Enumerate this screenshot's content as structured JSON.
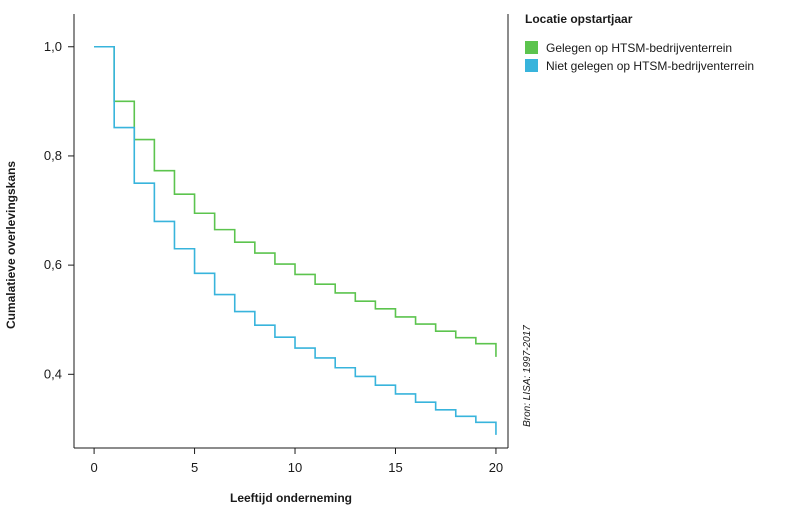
{
  "chart_data": {
    "type": "line",
    "step": true,
    "xlabel": "Leeftijd onderneming",
    "ylabel": "Cumalatieve overlevingskans",
    "xticks": [
      0,
      5,
      10,
      15,
      20
    ],
    "xtick_labels": [
      "0",
      "5",
      "10",
      "15",
      "20"
    ],
    "yticks": [
      0.4,
      0.6,
      0.8,
      1.0
    ],
    "ytick_labels": [
      "0,4",
      "0,6",
      "0,8",
      "1,0"
    ],
    "xlim": [
      -1,
      20.6
    ],
    "ylim": [
      0.265,
      1.06
    ],
    "grid": false,
    "legend": {
      "title": "Locatie opstartjaar",
      "placement": "top-right, outside plot"
    },
    "source": "Bron: LISA: 1997-2017",
    "series": [
      {
        "name": "Gelegen op HTSM-bedrijventerrein",
        "color": "#5cc44e",
        "x": [
          0,
          1,
          2,
          3,
          4,
          5,
          6,
          7,
          8,
          9,
          10,
          11,
          12,
          13,
          14,
          15,
          16,
          17,
          18,
          19,
          20
        ],
        "y": [
          1.0,
          0.9,
          0.83,
          0.773,
          0.73,
          0.695,
          0.665,
          0.642,
          0.622,
          0.602,
          0.583,
          0.565,
          0.549,
          0.534,
          0.52,
          0.505,
          0.492,
          0.479,
          0.467,
          0.456,
          0.443
        ]
      },
      {
        "name": "Niet gelegen op HTSM-bedrijventerrein",
        "color": "#38b4dc",
        "x": [
          0,
          1,
          2,
          3,
          4,
          5,
          6,
          7,
          8,
          9,
          10,
          11,
          12,
          13,
          14,
          15,
          16,
          17,
          18,
          19,
          20
        ],
        "y": [
          1.0,
          0.852,
          0.75,
          0.68,
          0.63,
          0.585,
          0.546,
          0.515,
          0.49,
          0.468,
          0.448,
          0.43,
          0.412,
          0.396,
          0.38,
          0.364,
          0.349,
          0.335,
          0.323,
          0.312,
          0.3
        ]
      }
    ]
  }
}
